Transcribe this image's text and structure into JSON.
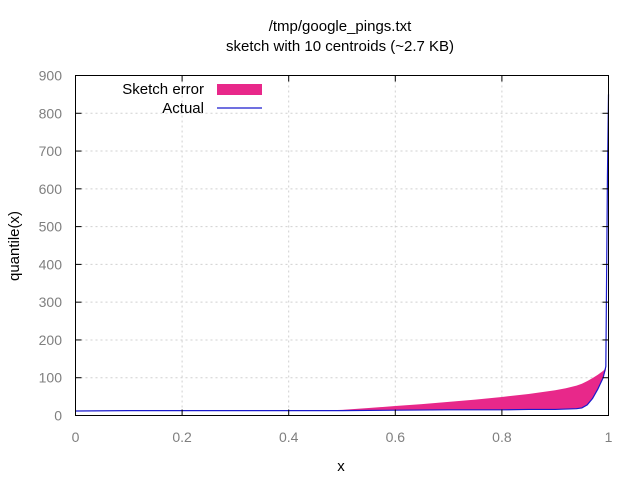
{
  "chart_data": {
    "type": "area",
    "title": "/tmp/google_pings.txt",
    "subtitle": "sketch with 10 centroids (~2.7 KB)",
    "xlabel": "x",
    "ylabel": "quantile(x)",
    "xlim": [
      0,
      1
    ],
    "ylim": [
      0,
      900
    ],
    "x_ticks": [
      0,
      0.2,
      0.4,
      0.6,
      0.8,
      1
    ],
    "x_tick_labels": [
      "0",
      "0.2",
      "0.4",
      "0.6",
      "0.8",
      "1"
    ],
    "y_ticks": [
      0,
      100,
      200,
      300,
      400,
      500,
      600,
      700,
      800,
      900
    ],
    "y_tick_labels": [
      "0",
      "100",
      "200",
      "300",
      "400",
      "500",
      "600",
      "700",
      "800",
      "900"
    ],
    "grid": true,
    "legend_position": "top-left",
    "series": [
      {
        "name": "Sketch error",
        "kind": "filled-band",
        "color": "#e8288a",
        "x": [
          0.0,
          0.1,
          0.2,
          0.3,
          0.4,
          0.45,
          0.5,
          0.55,
          0.6,
          0.65,
          0.7,
          0.75,
          0.8,
          0.85,
          0.9,
          0.92,
          0.94,
          0.95,
          0.96,
          0.97,
          0.98,
          0.99,
          0.995,
          1.0
        ],
        "lower": [
          12,
          13,
          13,
          13,
          13,
          13,
          13,
          14,
          14,
          14,
          15,
          15,
          15,
          16,
          16,
          17,
          18,
          20,
          28,
          45,
          70,
          100,
          120,
          850
        ],
        "upper": [
          12,
          13,
          13,
          13,
          13,
          13,
          15,
          20,
          25,
          30,
          36,
          42,
          49,
          57,
          67,
          72,
          79,
          84,
          91,
          99,
          108,
          118,
          125,
          850
        ]
      },
      {
        "name": "Actual",
        "kind": "line",
        "color": "#1a1acd",
        "x": [
          0.0,
          0.1,
          0.2,
          0.3,
          0.4,
          0.5,
          0.6,
          0.7,
          0.8,
          0.85,
          0.9,
          0.92,
          0.94,
          0.95,
          0.96,
          0.97,
          0.98,
          0.985,
          0.99,
          0.995,
          0.998,
          1.0
        ],
        "y": [
          12,
          13,
          13,
          13,
          13,
          13,
          14,
          15,
          15,
          16,
          16,
          17,
          18,
          20,
          28,
          45,
          70,
          85,
          100,
          130,
          630,
          850
        ]
      }
    ]
  }
}
